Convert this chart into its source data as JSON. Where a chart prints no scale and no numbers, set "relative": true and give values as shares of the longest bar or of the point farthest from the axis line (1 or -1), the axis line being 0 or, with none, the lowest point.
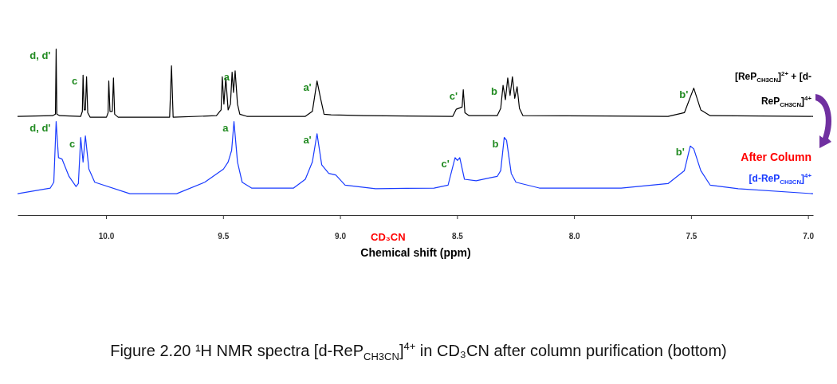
{
  "chart_data": {
    "type": "line",
    "relative": true,
    "xlabel": "Chemical shift (ppm)",
    "xlim": [
      10.38,
      6.98
    ],
    "xticks": [
      {
        "value": 10.0,
        "label": "10.0"
      },
      9.5,
      {
        "value": 9.0,
        "label": "9.0"
      },
      8.5,
      {
        "value": 8.0,
        "label": "8.0"
      },
      7.5,
      {
        "value": 7.0,
        "label": "7.0"
      }
    ],
    "series": [
      {
        "name": "[ReP$_{CH3CN}$]$^{2+}$ + [d-ReP$_{CH3CN}$]$^{4+}$",
        "color": "#000000",
        "x": [
          10.38,
          10.23,
          10.218,
          10.215,
          10.212,
          10.2,
          10.11,
          10.103,
          10.1,
          10.095,
          10.09,
          10.085,
          10.08,
          10.07,
          10.0,
          9.993,
          9.99,
          9.985,
          9.975,
          9.97,
          9.965,
          9.95,
          9.73,
          9.722,
          9.715,
          9.53,
          9.51,
          9.505,
          9.498,
          9.49,
          9.48,
          9.47,
          9.463,
          9.457,
          9.45,
          9.44,
          9.43,
          9.4,
          9.15,
          9.12,
          9.1,
          9.085,
          9.07,
          9.04,
          8.9,
          8.52,
          8.505,
          8.48,
          8.475,
          8.468,
          8.45,
          8.33,
          8.315,
          8.305,
          8.295,
          8.285,
          8.275,
          8.265,
          8.255,
          8.245,
          8.235,
          8.22,
          7.6,
          7.53,
          7.49,
          7.46,
          7.42,
          6.98
        ],
        "values": [
          0.595,
          0.599,
          0.608,
          1.0,
          0.608,
          0.599,
          0.595,
          0.625,
          0.843,
          0.634,
          0.634,
          0.834,
          0.617,
          0.59,
          0.59,
          0.617,
          0.808,
          0.625,
          0.625,
          0.826,
          0.608,
          0.59,
          0.59,
          0.9,
          0.59,
          0.599,
          0.634,
          0.834,
          0.669,
          0.826,
          0.634,
          0.669,
          0.861,
          0.739,
          0.869,
          0.669,
          0.608,
          0.595,
          0.595,
          0.625,
          0.808,
          0.704,
          0.608,
          0.604,
          0.599,
          0.595,
          0.638,
          0.651,
          0.756,
          0.617,
          0.599,
          0.599,
          0.643,
          0.782,
          0.695,
          0.826,
          0.721,
          0.834,
          0.704,
          0.774,
          0.643,
          0.599,
          0.595,
          0.617,
          0.765,
          0.634,
          0.599,
          0.595
        ]
      },
      {
        "name": "[d-ReP$_{CH3CN}$]$^{4+}$",
        "color": "#1a3cff",
        "x": [
          10.38,
          10.24,
          10.225,
          10.215,
          10.205,
          10.19,
          10.16,
          10.13,
          10.12,
          10.11,
          10.1,
          10.09,
          10.075,
          10.05,
          9.9,
          9.7,
          9.58,
          9.5,
          9.48,
          9.465,
          9.455,
          9.44,
          9.42,
          9.38,
          9.2,
          9.15,
          9.12,
          9.1,
          9.08,
          9.05,
          9.02,
          8.98,
          8.85,
          8.6,
          8.54,
          8.51,
          8.5,
          8.49,
          8.47,
          8.42,
          8.36,
          8.33,
          8.315,
          8.3,
          8.29,
          8.27,
          8.25,
          8.15,
          7.8,
          7.6,
          7.53,
          7.505,
          7.49,
          7.46,
          7.42,
          7.3,
          6.98
        ],
        "values": [
          0.129,
          0.163,
          0.198,
          0.564,
          0.346,
          0.338,
          0.233,
          0.172,
          0.19,
          0.468,
          0.32,
          0.477,
          0.277,
          0.198,
          0.129,
          0.129,
          0.198,
          0.277,
          0.32,
          0.39,
          0.564,
          0.32,
          0.198,
          0.163,
          0.163,
          0.216,
          0.32,
          0.49,
          0.303,
          0.251,
          0.242,
          0.181,
          0.159,
          0.163,
          0.181,
          0.346,
          0.329,
          0.346,
          0.216,
          0.207,
          0.225,
          0.233,
          0.268,
          0.468,
          0.451,
          0.251,
          0.198,
          0.163,
          0.163,
          0.19,
          0.268,
          0.416,
          0.399,
          0.268,
          0.181,
          0.159,
          0.129
        ]
      }
    ],
    "annotations": [
      {
        "text": "d, d'",
        "x": 10.215,
        "y": 1.0
      },
      {
        "text": "c",
        "x": 10.1,
        "y": 0.843
      },
      {
        "text": "a",
        "x": 9.45,
        "y": 0.869
      },
      {
        "text": "a'",
        "x": 9.1,
        "y": 0.808
      },
      {
        "text": "c'",
        "x": 8.475,
        "y": 0.756
      },
      {
        "text": "b",
        "x": 8.305,
        "y": 0.782
      },
      {
        "text": "b'",
        "x": 7.49,
        "y": 0.765
      },
      {
        "text": "d, d'",
        "x": 10.215,
        "y": 0.564
      },
      {
        "text": "c",
        "x": 10.11,
        "y": 0.468
      },
      {
        "text": "a",
        "x": 9.455,
        "y": 0.564
      },
      {
        "text": "a'",
        "x": 9.1,
        "y": 0.49
      },
      {
        "text": "c'",
        "x": 8.51,
        "y": 0.346
      },
      {
        "text": "b",
        "x": 8.3,
        "y": 0.468
      },
      {
        "text": "b'",
        "x": 7.505,
        "y": 0.416
      },
      "After Column",
      "CD₃CN",
      "Figure 2.20 ¹H NMR spectra [d-ReP$_{CH3CN}$]$^{4+}$ in CD₃CN after column purification (bottom)"
    ]
  }
}
